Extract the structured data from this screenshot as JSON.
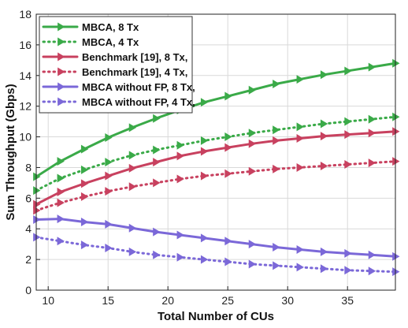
{
  "chart_data": {
    "type": "line",
    "title": "",
    "xlabel": "Total Number of CUs",
    "ylabel": "Sum Throughput (Gbps)",
    "xlim": [
      9,
      39
    ],
    "ylim": [
      0,
      18
    ],
    "xticks": [
      10,
      15,
      20,
      25,
      30,
      35
    ],
    "yticks": [
      0,
      2,
      4,
      6,
      8,
      10,
      12,
      14,
      16,
      18
    ],
    "grid": true,
    "legend_position": "top-left",
    "x": [
      9,
      11,
      13,
      15,
      17,
      19,
      21,
      23,
      25,
      27,
      29,
      31,
      33,
      35,
      37,
      39
    ],
    "series": [
      {
        "name": "MBCA, 8 Tx",
        "color": "#3aaa48",
        "line_style": "solid",
        "marker": "triangle-right",
        "values": [
          7.4,
          8.4,
          9.2,
          9.95,
          10.6,
          11.2,
          11.75,
          12.25,
          12.65,
          13.05,
          13.45,
          13.75,
          14.05,
          14.3,
          14.55,
          14.8
        ]
      },
      {
        "name": "MBCA, 4 Tx",
        "color": "#3aaa48",
        "line_style": "dotted",
        "marker": "triangle-right",
        "values": [
          6.5,
          7.3,
          7.85,
          8.35,
          8.8,
          9.15,
          9.45,
          9.75,
          10.0,
          10.25,
          10.45,
          10.65,
          10.85,
          11.0,
          11.15,
          11.3
        ]
      },
      {
        "name": "Benchmark [19], 8 Tx,",
        "color": "#c8415f",
        "line_style": "solid",
        "marker": "triangle-right",
        "values": [
          5.6,
          6.4,
          6.95,
          7.45,
          7.95,
          8.35,
          8.75,
          9.05,
          9.3,
          9.55,
          9.75,
          9.9,
          10.05,
          10.15,
          10.25,
          10.35
        ]
      },
      {
        "name": "Benchmark [19], 4 Tx,",
        "color": "#c8415f",
        "line_style": "dotted",
        "marker": "triangle-right",
        "values": [
          5.2,
          5.7,
          6.1,
          6.45,
          6.75,
          7.0,
          7.25,
          7.45,
          7.6,
          7.75,
          7.9,
          8.0,
          8.1,
          8.2,
          8.3,
          8.4
        ]
      },
      {
        "name": "MBCA without FP, 8 Tx,",
        "color": "#7b68d8",
        "line_style": "solid",
        "marker": "triangle-right",
        "values": [
          4.6,
          4.65,
          4.45,
          4.3,
          4.05,
          3.8,
          3.6,
          3.4,
          3.2,
          3.0,
          2.8,
          2.65,
          2.5,
          2.4,
          2.3,
          2.2
        ]
      },
      {
        "name": "MBCA without FP, 4 Tx,",
        "color": "#7b68d8",
        "line_style": "dotted",
        "marker": "triangle-right",
        "values": [
          3.45,
          3.2,
          2.95,
          2.75,
          2.5,
          2.3,
          2.15,
          2.0,
          1.85,
          1.7,
          1.6,
          1.5,
          1.4,
          1.3,
          1.25,
          1.2
        ]
      }
    ]
  }
}
